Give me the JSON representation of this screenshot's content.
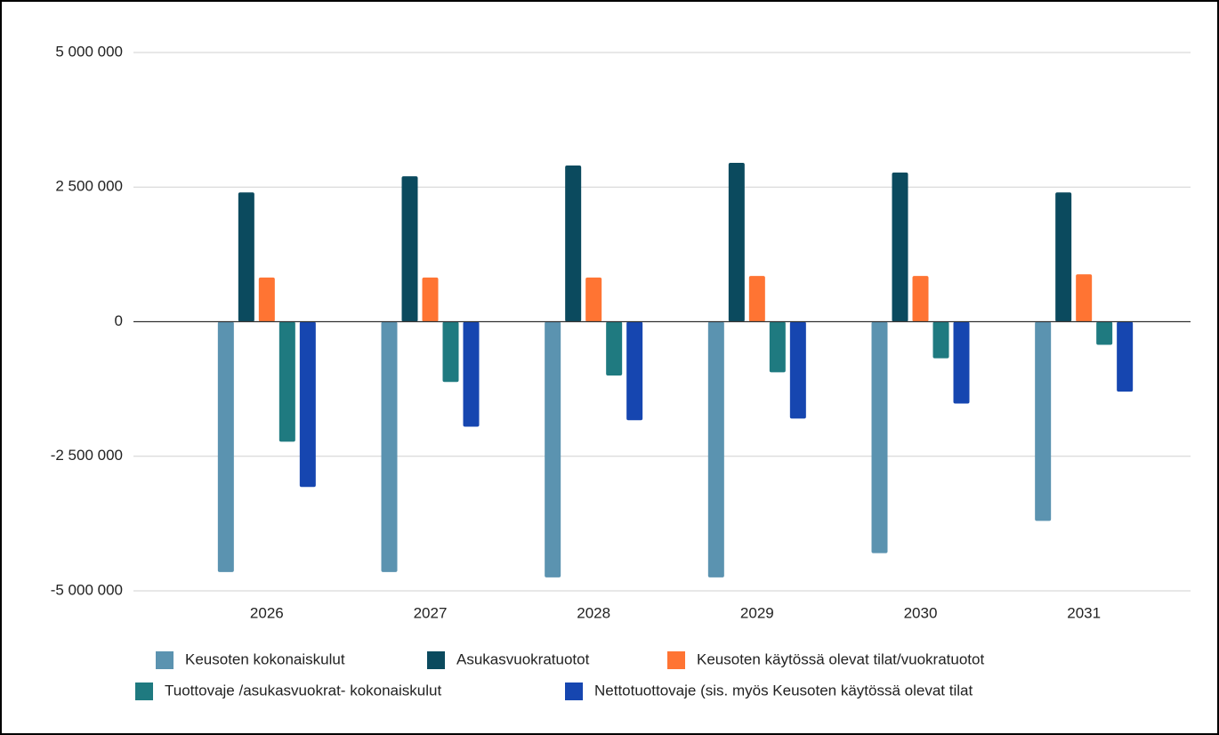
{
  "chart_data": {
    "type": "bar",
    "categories": [
      "2026",
      "2027",
      "2028",
      "2029",
      "2030",
      "2031"
    ],
    "series": [
      {
        "name": "Keusoten kokonaiskulut",
        "color": "#5b93b0",
        "values": [
          -4650000,
          -4650000,
          -4750000,
          -4750000,
          -4300000,
          -3700000
        ]
      },
      {
        "name": "Asukasvuokratuotot",
        "color": "#0b4a5e",
        "values": [
          2400000,
          2700000,
          2900000,
          2950000,
          2770000,
          2400000
        ]
      },
      {
        "name": "Keusoten käytössä olevat tilat/vuokratuotot",
        "color": "#ff7433",
        "values": [
          820000,
          820000,
          820000,
          850000,
          850000,
          880000
        ]
      },
      {
        "name": "Tuottovaje /asukasvuokrat- kokonaiskulut",
        "color": "#1f7a80",
        "values": [
          -2230000,
          -1120000,
          -1000000,
          -940000,
          -680000,
          -430000
        ]
      },
      {
        "name": "Nettotuottovaje (sis. myös Keusoten käytössä olevat tilat",
        "color": "#1646b0",
        "values": [
          -3070000,
          -1950000,
          -1830000,
          -1800000,
          -1520000,
          -1300000
        ]
      }
    ],
    "ylim": [
      -5000000,
      5000000
    ],
    "yticks": [
      {
        "value": -5000000,
        "label": "-5 000 000"
      },
      {
        "value": -2500000,
        "label": "-2 500 000"
      },
      0,
      {
        "value": 2500000,
        "label": "2 500 000"
      },
      {
        "value": 5000000,
        "label": "5 000 000"
      }
    ],
    "grid": true
  }
}
